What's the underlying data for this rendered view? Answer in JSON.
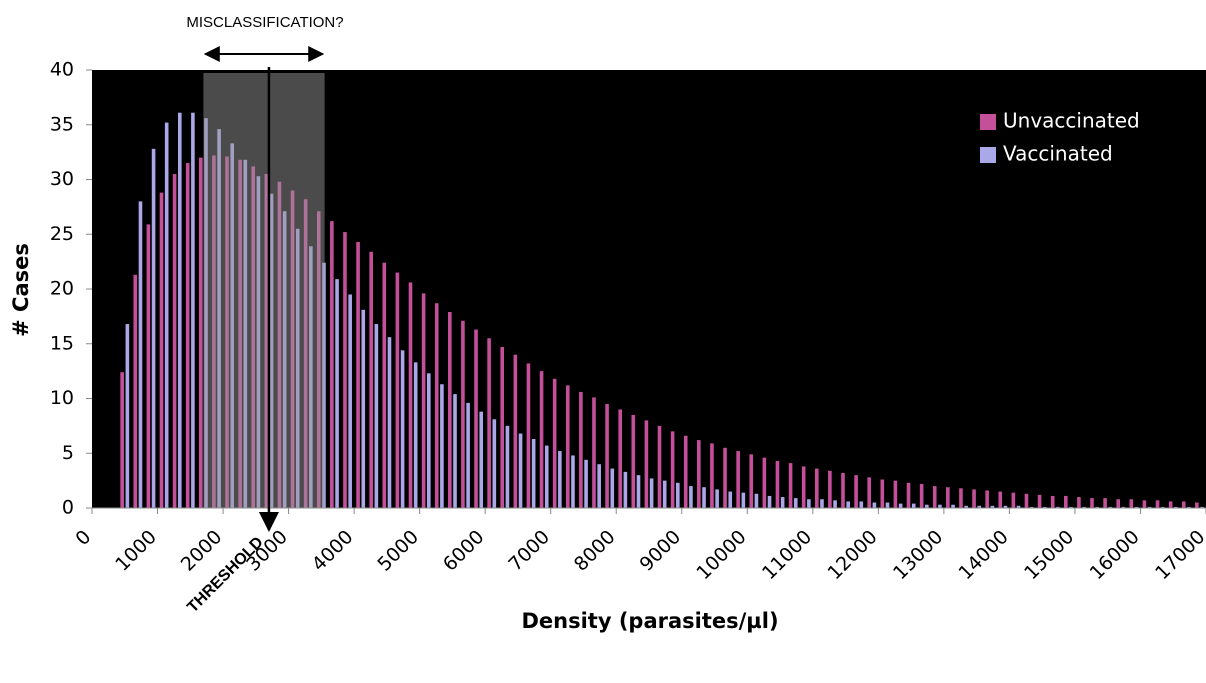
{
  "chart_data": {
    "type": "bar",
    "annotation": "MISCLASSIFICATION?",
    "threshold": {
      "label": "THRESHOLD",
      "value": 2700
    },
    "shaded_range": [
      1700,
      3550
    ],
    "x_label": "Density (parasites/µl)",
    "y_label": "# Cases",
    "x": [
      500,
      700,
      900,
      1100,
      1300,
      1500,
      1700,
      1900,
      2100,
      2300,
      2500,
      2700,
      2900,
      3100,
      3300,
      3500,
      3700,
      3900,
      4100,
      4300,
      4500,
      4700,
      4900,
      5100,
      5300,
      5500,
      5700,
      5900,
      6100,
      6300,
      6500,
      6700,
      6900,
      7100,
      7300,
      7500,
      7700,
      7900,
      8100,
      8300,
      8500,
      8700,
      8900,
      9100,
      9300,
      9500,
      9700,
      9900,
      10100,
      10300,
      10500,
      10700,
      10900,
      11100,
      11300,
      11500,
      11700,
      11900,
      12100,
      12300,
      12500,
      12700,
      12900,
      13100,
      13300,
      13500,
      13700,
      13900,
      14100,
      14300,
      14500,
      14700,
      14900,
      15100,
      15300,
      15500,
      15700,
      15900,
      16100,
      16300,
      16500,
      16700,
      16900
    ],
    "series": [
      {
        "name": "Unvaccinated",
        "color": "#c4509a",
        "values": [
          12.4,
          21.3,
          25.9,
          28.8,
          30.5,
          31.5,
          32.0,
          32.2,
          32.1,
          31.8,
          31.2,
          30.5,
          29.8,
          29.0,
          28.2,
          27.1,
          26.2,
          25.2,
          24.3,
          23.4,
          22.4,
          21.5,
          20.6,
          19.6,
          18.7,
          17.9,
          17.1,
          16.3,
          15.5,
          14.7,
          14.0,
          13.2,
          12.5,
          11.8,
          11.2,
          10.6,
          10.1,
          9.5,
          9.0,
          8.5,
          8.0,
          7.5,
          7.0,
          6.6,
          6.2,
          5.9,
          5.5,
          5.2,
          4.9,
          4.6,
          4.3,
          4.1,
          3.8,
          3.6,
          3.4,
          3.2,
          3.0,
          2.8,
          2.6,
          2.5,
          2.3,
          2.2,
          2.0,
          1.9,
          1.8,
          1.7,
          1.6,
          1.5,
          1.4,
          1.3,
          1.2,
          1.1,
          1.1,
          1.0,
          0.9,
          0.9,
          0.8,
          0.8,
          0.7,
          0.7,
          0.6,
          0.6,
          0.5
        ]
      },
      {
        "name": "Vaccinated",
        "color": "#aaa8e8",
        "values": [
          16.8,
          28.0,
          32.8,
          35.2,
          36.1,
          36.1,
          35.6,
          34.6,
          33.3,
          31.8,
          30.3,
          28.7,
          27.1,
          25.5,
          23.9,
          22.4,
          20.9,
          19.5,
          18.1,
          16.8,
          15.6,
          14.4,
          13.3,
          12.3,
          11.3,
          10.4,
          9.6,
          8.8,
          8.1,
          7.5,
          6.8,
          6.3,
          5.7,
          5.2,
          4.8,
          4.4,
          4.0,
          3.6,
          3.3,
          3.0,
          2.7,
          2.5,
          2.3,
          2.0,
          1.9,
          1.7,
          1.5,
          1.4,
          1.3,
          1.1,
          1.0,
          0.9,
          0.8,
          0.8,
          0.7,
          0.6,
          0.6,
          0.5,
          0.5,
          0.4,
          0.4,
          0.3,
          0.3,
          0.3,
          0.2,
          0.2,
          0.2,
          0.2,
          0.2,
          0.1,
          0.1,
          0.1,
          0.1,
          0.1,
          0.1,
          0.1,
          0.1,
          0.1,
          0.1,
          0.1,
          0.1,
          0.1,
          0.1
        ]
      }
    ],
    "xlim": [
      0,
      17000
    ],
    "xticks": [
      0,
      1000,
      2000,
      3000,
      4000,
      5000,
      6000,
      7000,
      8000,
      9000,
      10000,
      11000,
      12000,
      13000,
      14000,
      15000,
      16000,
      17000
    ],
    "ylim": [
      0,
      40
    ],
    "yticks": [
      0,
      5,
      10,
      15,
      20,
      25,
      30,
      35,
      40
    ],
    "background": "#000000"
  }
}
